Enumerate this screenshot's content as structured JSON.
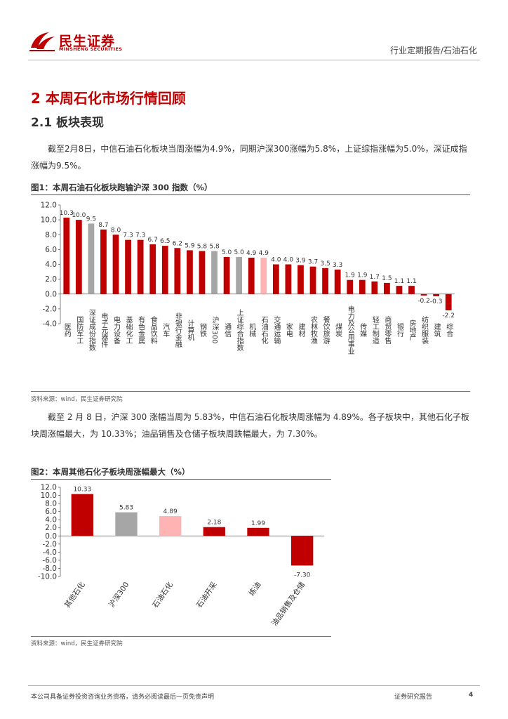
{
  "header": {
    "logo_cn": "民生证券",
    "logo_en": "MINSHENG SECURITIES",
    "report_type": "行业定期报告/石油石化"
  },
  "section": {
    "title": "2 本周石化市场行情回顾",
    "subtitle": "2.1 板块表现"
  },
  "paragraphs": {
    "p1": "截至2月8日，中信石油石化板块当周涨幅为4.9%，同期沪深300涨幅为5.8%，上证综指涨幅为5.0%，深证成指涨幅为9.5%。",
    "p2": "截至 2 月 8 日，沪深 300 涨幅当周为 5.83%，中信石油石化板块周涨幅为 4.89%。各子板块中，其他石化子板块周涨幅最大，为 10.33%；油品销售及仓储子板块周跌幅最大，为 7.30%。"
  },
  "figures": {
    "fig1_title": "图1：本周石油石化板块跑输沪深 300 指数（%）",
    "fig1_source": "资料来源：wind，民生证券研究院",
    "fig2_title": "图2：本周其他石化子板块周涨幅最大（%）",
    "fig2_source": "资料来源：wind，民生证券研究院"
  },
  "colors": {
    "brand_red": "#c00000",
    "bar_red": "#c00000",
    "bar_gray": "#a6a6a6",
    "bar_pink": "#ffb3b3"
  },
  "chart_data": [
    {
      "type": "bar",
      "title": "本周石油石化板块跑输沪深 300 指数（%）",
      "categories": [
        "医药",
        "国防军工",
        "深证成份指数",
        "电子元器件",
        "电力设备",
        "基础化工",
        "有色金属",
        "食品饮料",
        "汽车",
        "非银行金融",
        "计算机",
        "钢铁",
        "沪深300",
        "通信",
        "上证综合指数",
        "机械",
        "石油石化",
        "交通运输",
        "家电",
        "建材",
        "农林牧渔",
        "餐饮旅游",
        "煤炭",
        "电力及公用事业",
        "传媒",
        "轻工制造",
        "商贸零售",
        "银行",
        "房地产",
        "纺织服装",
        "建筑",
        "综合"
      ],
      "values": [
        10.3,
        10.0,
        9.5,
        8.7,
        8.0,
        7.3,
        7.3,
        6.7,
        6.5,
        6.2,
        5.9,
        5.8,
        5.8,
        5.0,
        5.0,
        4.9,
        4.9,
        4.0,
        4.0,
        3.9,
        3.7,
        3.5,
        3.3,
        1.9,
        1.9,
        1.7,
        1.5,
        1.1,
        1.1,
        -0.2,
        -0.3,
        -2.2
      ],
      "value_labels": [
        "10.3",
        "10.0",
        "9.5",
        "8.7",
        "8.0",
        "7.3",
        "7.3",
        "6.7",
        "6.5",
        "6.2",
        "5.9",
        "5.8",
        "5.8",
        "5.0",
        "5.0",
        "4.9",
        "4.9",
        "4.0",
        "4.0",
        "3.9",
        "3.7",
        "3.5",
        "3.3",
        "1.9",
        "1.9",
        "1.7",
        "1.5",
        "1.1",
        "1.1",
        "-0.2",
        "-0.3",
        "-2.2"
      ],
      "bar_colors": [
        "#c00000",
        "#c00000",
        "#a6a6a6",
        "#c00000",
        "#c00000",
        "#c00000",
        "#c00000",
        "#c00000",
        "#c00000",
        "#c00000",
        "#c00000",
        "#c00000",
        "#a6a6a6",
        "#c00000",
        "#a6a6a6",
        "#c00000",
        "#ffb3b3",
        "#c00000",
        "#c00000",
        "#c00000",
        "#c00000",
        "#c00000",
        "#c00000",
        "#c00000",
        "#c00000",
        "#c00000",
        "#c00000",
        "#c00000",
        "#c00000",
        "#c00000",
        "#c00000",
        "#c00000"
      ],
      "y_ticks": [
        "12.0",
        "10.0",
        "8.0",
        "6.0",
        "4.0",
        "2.0",
        "0.0",
        "-2.0",
        "-4.0"
      ],
      "ylim": [
        -4,
        12
      ],
      "grid": false
    },
    {
      "type": "bar",
      "title": "本周其他石化子板块周涨幅最大（%）",
      "categories": [
        "其他石化",
        "沪深300",
        "石油石化",
        "石油开采",
        "炼油",
        "油品销售及仓储"
      ],
      "values": [
        10.33,
        5.83,
        4.89,
        2.18,
        1.99,
        -7.3
      ],
      "value_labels": [
        "10.33",
        "5.83",
        "4.89",
        "2.18",
        "1.99",
        "-7.30"
      ],
      "bar_colors": [
        "#c00000",
        "#a6a6a6",
        "#ffb3b3",
        "#c00000",
        "#c00000",
        "#c00000"
      ],
      "y_ticks": [
        "12.0",
        "10.0",
        "8.0",
        "6.0",
        "4.0",
        "2.0",
        "0.0",
        "-2.0",
        "-4.0",
        "-6.0",
        "-8.0",
        "-10.0"
      ],
      "ylim": [
        -10,
        12
      ],
      "grid": false
    }
  ],
  "footer": {
    "disclaimer": "本公司具备证券投资咨询业务资格，请务必阅读最后一页免责声明",
    "label": "证券研究报告",
    "page": "4"
  }
}
